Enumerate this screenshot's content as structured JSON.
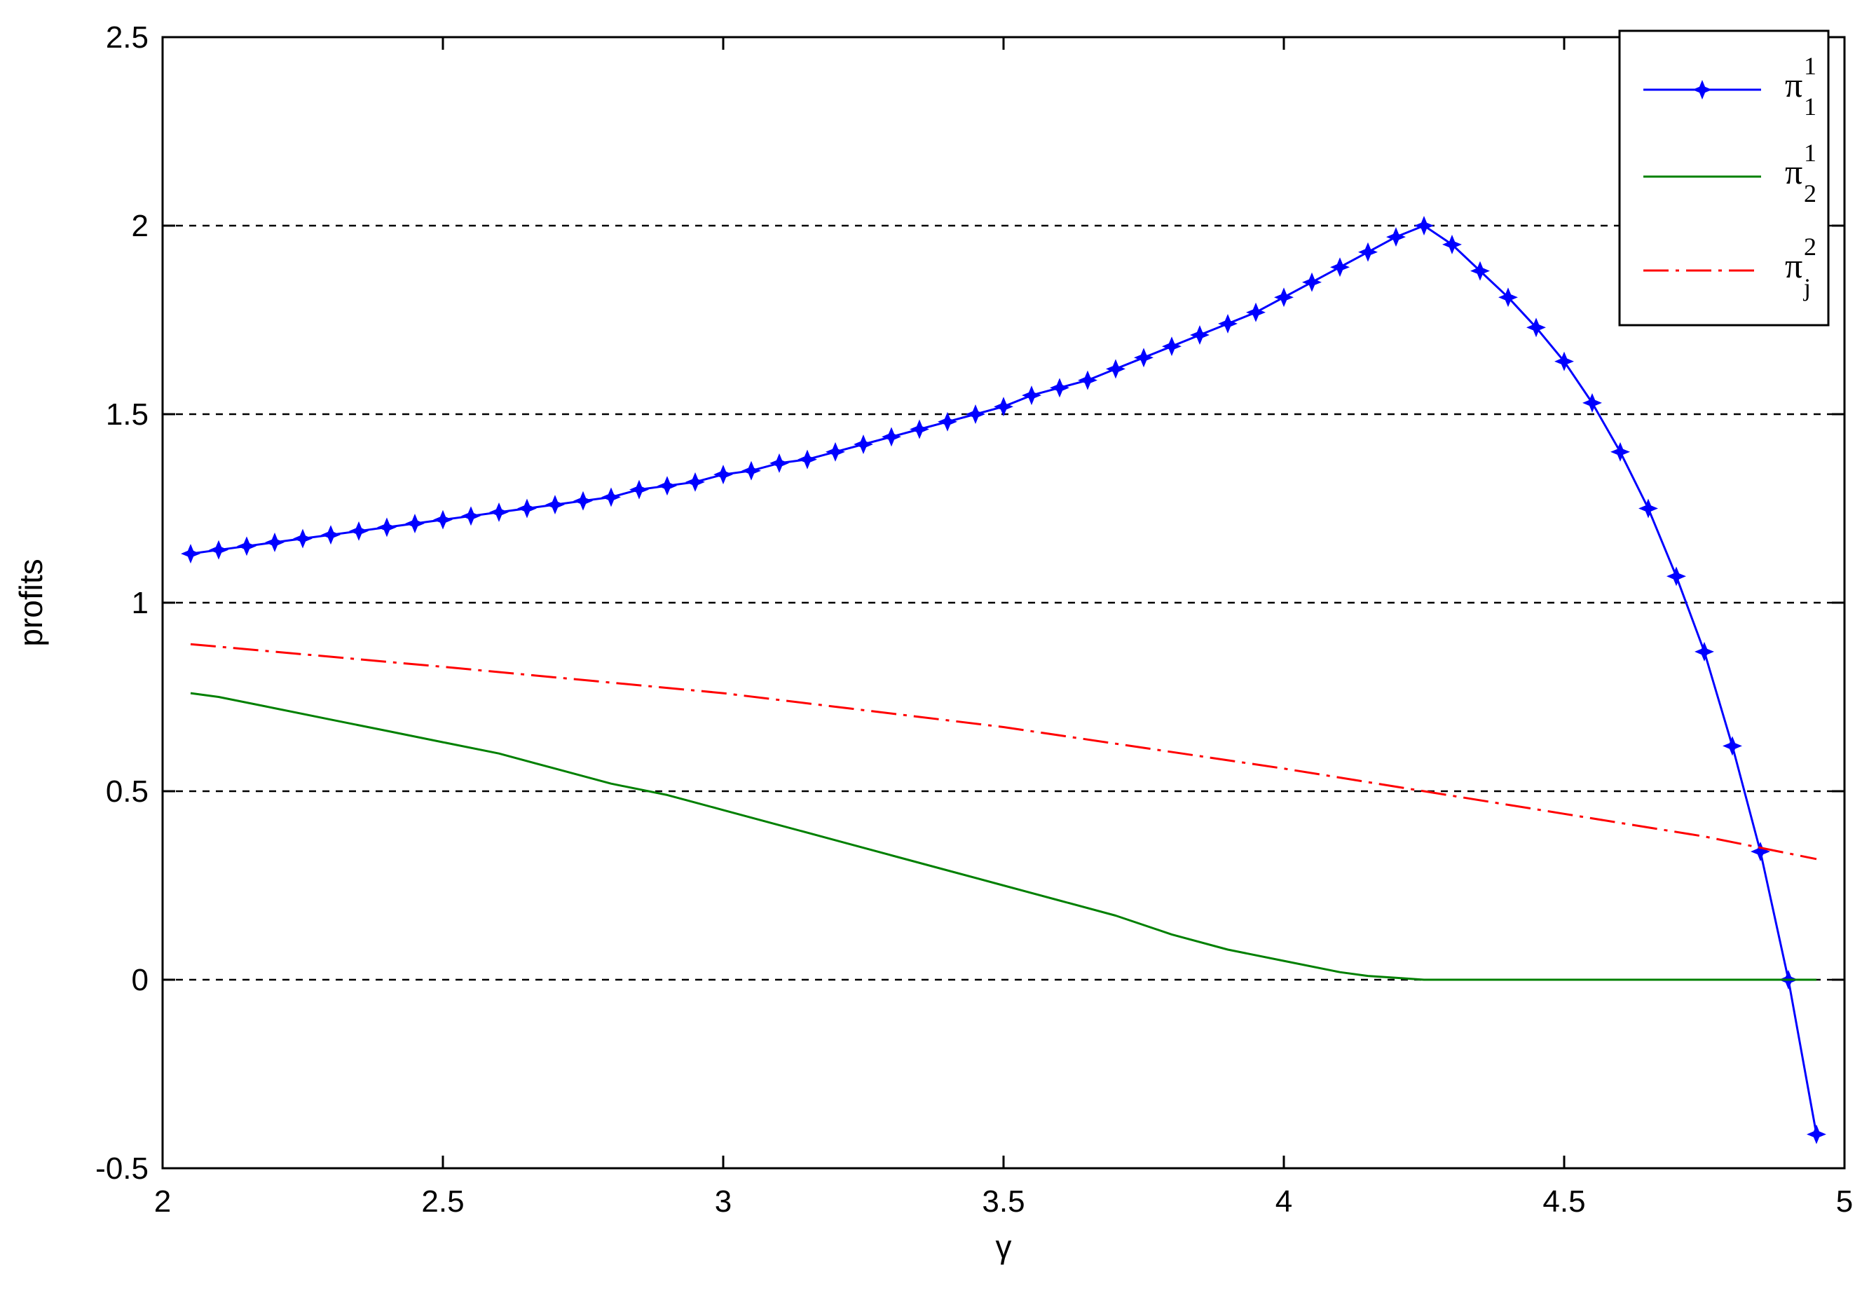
{
  "chart_data": {
    "type": "line",
    "xlabel": "γ",
    "ylabel": "profits",
    "xlim": [
      2,
      5
    ],
    "ylim": [
      -0.5,
      2.5
    ],
    "x_ticks": [
      "2",
      "2.5",
      "3",
      "3.5",
      "4",
      "4.5",
      "5"
    ],
    "y_ticks": [
      "2.5",
      "2",
      "1.5",
      "1",
      "0.5",
      "0",
      "-0.5"
    ],
    "grid": "dashed horizontal lines at 0, 0.5, 1, 1.5, 2",
    "legend_position": "top-right",
    "series": [
      {
        "name": "π₁¹",
        "legend": {
          "base": "π",
          "sub": "1",
          "sup": "1"
        },
        "color": "#0000ff",
        "style": "solid line with star markers",
        "x": [
          2.05,
          2.1,
          2.15,
          2.2,
          2.25,
          2.3,
          2.35,
          2.4,
          2.45,
          2.5,
          2.55,
          2.6,
          2.65,
          2.7,
          2.75,
          2.8,
          2.85,
          2.9,
          2.95,
          3.0,
          3.05,
          3.1,
          3.15,
          3.2,
          3.25,
          3.3,
          3.35,
          3.4,
          3.45,
          3.5,
          3.55,
          3.6,
          3.65,
          3.7,
          3.75,
          3.8,
          3.85,
          3.9,
          3.95,
          4.0,
          4.05,
          4.1,
          4.15,
          4.2,
          4.25,
          4.3,
          4.35,
          4.4,
          4.45,
          4.5,
          4.55,
          4.6,
          4.65,
          4.7,
          4.75,
          4.8,
          4.85,
          4.9,
          4.95
        ],
        "y": [
          1.13,
          1.14,
          1.15,
          1.16,
          1.17,
          1.18,
          1.19,
          1.2,
          1.21,
          1.22,
          1.23,
          1.24,
          1.25,
          1.26,
          1.27,
          1.28,
          1.3,
          1.31,
          1.32,
          1.34,
          1.35,
          1.37,
          1.38,
          1.4,
          1.42,
          1.44,
          1.46,
          1.48,
          1.5,
          1.52,
          1.55,
          1.57,
          1.59,
          1.62,
          1.65,
          1.68,
          1.71,
          1.74,
          1.77,
          1.81,
          1.85,
          1.89,
          1.93,
          1.97,
          2.0,
          1.95,
          1.88,
          1.81,
          1.73,
          1.64,
          1.53,
          1.4,
          1.25,
          1.07,
          0.87,
          0.62,
          0.34,
          0.0,
          -0.41
        ]
      },
      {
        "name": "π₂¹",
        "legend": {
          "base": "π",
          "sub": "2",
          "sup": "1"
        },
        "color": "#008000",
        "style": "solid line",
        "x": [
          2.05,
          2.1,
          2.2,
          2.3,
          2.4,
          2.5,
          2.6,
          2.7,
          2.8,
          2.9,
          3.0,
          3.1,
          3.2,
          3.3,
          3.4,
          3.5,
          3.6,
          3.7,
          3.8,
          3.9,
          4.0,
          4.1,
          4.15,
          4.2,
          4.25,
          4.5,
          4.75,
          4.95
        ],
        "y": [
          0.76,
          0.75,
          0.72,
          0.69,
          0.66,
          0.63,
          0.6,
          0.56,
          0.52,
          0.49,
          0.45,
          0.41,
          0.37,
          0.33,
          0.29,
          0.25,
          0.21,
          0.17,
          0.12,
          0.08,
          0.05,
          0.02,
          0.01,
          0.005,
          0.0,
          0.0,
          0.0,
          0.0
        ]
      },
      {
        "name": "πⱼ²",
        "legend": {
          "base": "π",
          "sub": "j",
          "sup": "2"
        },
        "color": "#ff0000",
        "style": "dash-dot line",
        "x": [
          2.05,
          2.5,
          3.0,
          3.5,
          4.0,
          4.25,
          4.5,
          4.75,
          4.95
        ],
        "y": [
          0.89,
          0.83,
          0.76,
          0.67,
          0.56,
          0.5,
          0.44,
          0.38,
          0.32
        ]
      }
    ]
  }
}
